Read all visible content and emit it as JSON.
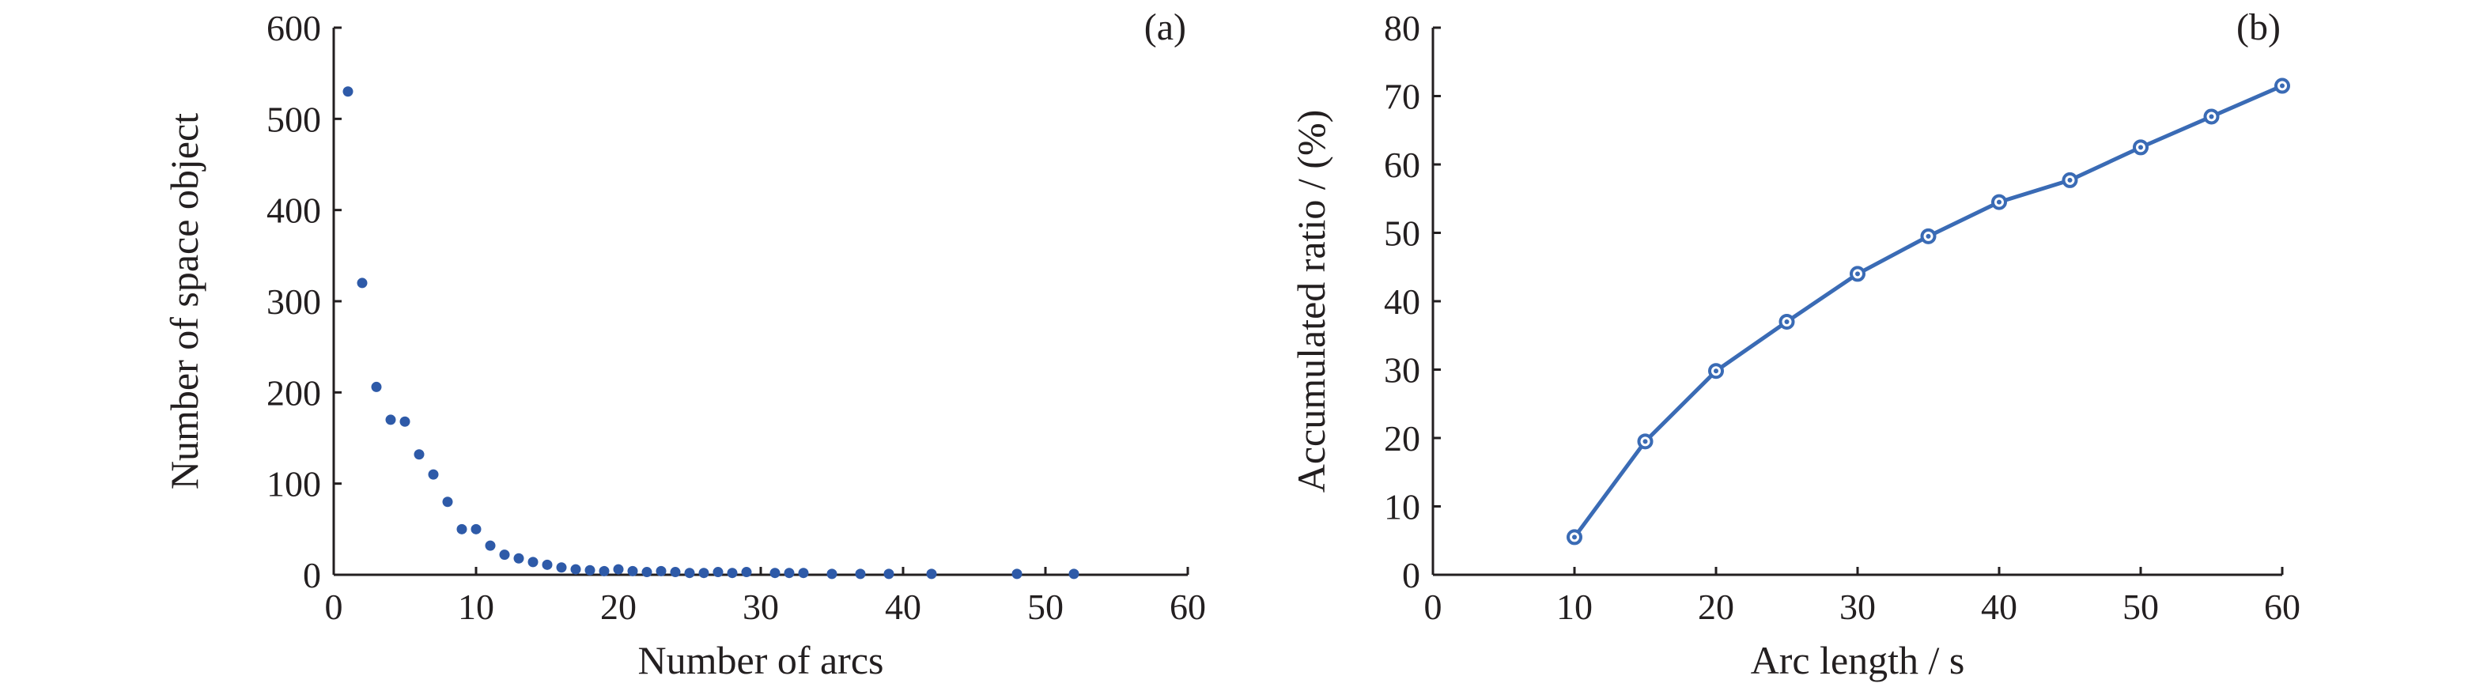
{
  "chart_data": [
    {
      "type": "scatter",
      "panel_label": "(a)",
      "xlabel": "Number of arcs",
      "ylabel": "Number of space object",
      "xlim": [
        0,
        60
      ],
      "ylim": [
        0,
        600
      ],
      "xticks": [
        0,
        10,
        20,
        30,
        40,
        50,
        60
      ],
      "yticks": [
        0,
        100,
        200,
        300,
        400,
        500,
        600
      ],
      "grid": false,
      "color": "#2e5aa8",
      "x": [
        1,
        2,
        3,
        4,
        5,
        6,
        7,
        8,
        9,
        10,
        11,
        12,
        13,
        14,
        15,
        16,
        17,
        18,
        19,
        20,
        21,
        22,
        23,
        24,
        25,
        26,
        27,
        28,
        29,
        31,
        32,
        33,
        35,
        37,
        39,
        42,
        48,
        52
      ],
      "y": [
        530,
        320,
        206,
        170,
        168,
        132,
        110,
        80,
        50,
        50,
        32,
        22,
        18,
        14,
        11,
        8,
        6,
        5,
        4,
        6,
        4,
        3,
        4,
        3,
        2,
        2,
        3,
        2,
        3,
        2,
        2,
        2,
        1,
        1,
        1,
        1,
        1,
        1
      ]
    },
    {
      "type": "line",
      "panel_label": "(b)",
      "xlabel": "Arc length / s",
      "ylabel": "Accumulated ratio / (%)",
      "xlim": [
        0,
        60
      ],
      "ylim": [
        0,
        80
      ],
      "xticks": [
        0,
        10,
        20,
        30,
        40,
        50,
        60
      ],
      "yticks": [
        0,
        10,
        20,
        30,
        40,
        50,
        60,
        70,
        80
      ],
      "grid": false,
      "color": "#3a6bb5",
      "x": [
        10,
        15,
        20,
        25,
        30,
        35,
        40,
        45,
        50,
        55,
        60
      ],
      "y": [
        5.5,
        19.5,
        29.8,
        37,
        44,
        49.5,
        54.5,
        57.7,
        62.5,
        67,
        71.5
      ]
    }
  ]
}
